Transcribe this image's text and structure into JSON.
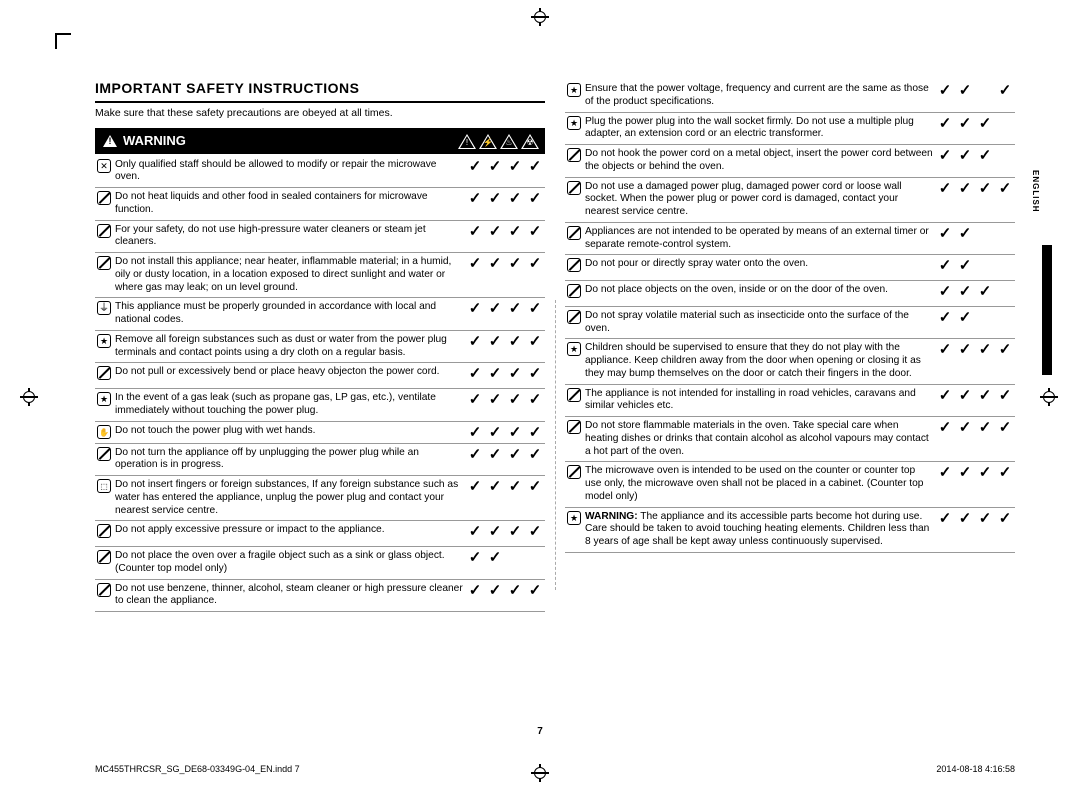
{
  "heading": "Important safety instructions",
  "subhead": "Make sure that these safety precautions are obeyed at all times.",
  "warning_label": "WARNING",
  "language_tab": "ENGLISH",
  "page_number": "7",
  "footer_left": "MC455THRCSR_SG_DE68-03349G-04_EN.indd   7",
  "footer_right": "2014-08-18    4:16:58",
  "checkmark": "✓",
  "left_rows": [
    {
      "icon": "disassembly",
      "text": "Only qualified staff should be allowed to modify or repair the microwave oven.",
      "checks": [
        true,
        true,
        true,
        true
      ]
    },
    {
      "icon": "prohibit",
      "text": "Do not heat liquids and other food in sealed containers for microwave function.",
      "checks": [
        true,
        true,
        true,
        true
      ]
    },
    {
      "icon": "prohibit",
      "text": "For your safety, do not use high-pressure water cleaners or steam jet cleaners.",
      "checks": [
        true,
        true,
        true,
        true
      ]
    },
    {
      "icon": "prohibit",
      "text": "Do not install this appliance; near heater, inflammable material; in a humid, oily or dusty location, in a location exposed to direct sunlight and water or where gas may leak; on un level ground.",
      "checks": [
        true,
        true,
        true,
        true
      ]
    },
    {
      "icon": "ground",
      "text": "This appliance must be properly grounded in accordance with local and national codes.",
      "checks": [
        true,
        true,
        true,
        true
      ]
    },
    {
      "icon": "star",
      "text": "Remove all foreign substances such as dust or water from the power plug terminals and contact points using a dry cloth on a regular basis.",
      "checks": [
        true,
        true,
        true,
        true
      ]
    },
    {
      "icon": "prohibit",
      "text": "Do not pull or excessively bend or place heavy objecton the power cord.",
      "checks": [
        true,
        true,
        true,
        true
      ]
    },
    {
      "icon": "star",
      "text": "In the event of a gas leak (such as propane gas, LP gas, etc.), ventilate immediately without touching the power plug.",
      "checks": [
        true,
        true,
        true,
        true
      ]
    },
    {
      "icon": "hand",
      "text": "Do not touch the power plug with wet hands.",
      "checks": [
        true,
        true,
        true,
        true
      ]
    },
    {
      "icon": "prohibit",
      "text": "Do not turn the appliance off by unplugging the power plug while an operation is in progress.",
      "checks": [
        true,
        true,
        true,
        true
      ]
    },
    {
      "icon": "plug",
      "text": "Do not insert fingers or foreign substances, If any foreign substance such as water has entered the appliance, unplug the power plug and contact your nearest service centre.",
      "checks": [
        true,
        true,
        true,
        true
      ]
    },
    {
      "icon": "prohibit",
      "text": "Do not apply excessive pressure or impact to the appliance.",
      "checks": [
        true,
        true,
        true,
        true
      ]
    },
    {
      "icon": "prohibit",
      "text": "Do not place the oven over a fragile object such as a sink or glass object. (Counter top model only)",
      "checks": [
        true,
        true,
        false,
        false
      ]
    },
    {
      "icon": "prohibit",
      "text": "Do not use benzene, thinner, alcohol, steam cleaner or high pressure cleaner to clean the appliance.",
      "checks": [
        true,
        true,
        true,
        true
      ]
    }
  ],
  "right_rows": [
    {
      "icon": "star",
      "text": "Ensure that the power voltage, frequency and current are the same as those of the product specifications.",
      "checks": [
        true,
        true,
        false,
        true
      ]
    },
    {
      "icon": "star",
      "text": "Plug the power plug into the wall socket firmly. Do not use a multiple plug adapter, an extension cord or an electric transformer.",
      "checks": [
        true,
        true,
        true,
        false
      ]
    },
    {
      "icon": "prohibit",
      "text": "Do not hook the power cord on a metal object, insert the power cord between the objects or behind the oven.",
      "checks": [
        true,
        true,
        true,
        false
      ]
    },
    {
      "icon": "prohibit",
      "text": "Do not use a damaged power plug, damaged power cord or loose wall socket. When the power plug or power cord is damaged, contact your nearest service centre.",
      "checks": [
        true,
        true,
        true,
        true
      ]
    },
    {
      "icon": "prohibit",
      "text": "Appliances are not intended to be operated by means of an external timer or separate remote-control system.",
      "checks": [
        true,
        true,
        false,
        false
      ]
    },
    {
      "icon": "prohibit",
      "text": "Do not pour or directly spray water onto the oven.",
      "checks": [
        true,
        true,
        false,
        false
      ]
    },
    {
      "icon": "prohibit",
      "text": "Do not place objects on the oven, inside or on the door of the oven.",
      "checks": [
        true,
        true,
        true,
        false
      ]
    },
    {
      "icon": "prohibit",
      "text": "Do not spray volatile material such as insecticide onto the surface of the oven.",
      "checks": [
        true,
        true,
        false,
        false
      ]
    },
    {
      "icon": "star",
      "text": "Children should be supervised to ensure that they do not play with the appliance. Keep children away from the door when opening or closing it as they may bump themselves on the door or catch their fingers in the door.",
      "checks": [
        true,
        true,
        true,
        true
      ]
    },
    {
      "icon": "prohibit",
      "text": "The appliance is not intended for installing in road vehicles, caravans and similar vehicles etc.",
      "checks": [
        true,
        true,
        true,
        true
      ]
    },
    {
      "icon": "prohibit",
      "text": "Do not store flammable materials in the oven. Take special care when heating dishes or drinks that contain alcohol as alcohol vapours may contact a hot part of the oven.",
      "checks": [
        true,
        true,
        true,
        true
      ]
    },
    {
      "icon": "prohibit",
      "text": "The microwave oven is intended to be used on the counter or counter top use only, the microwave oven shall not be placed in a cabinet. (Counter top model only)",
      "checks": [
        true,
        true,
        true,
        true
      ]
    },
    {
      "icon": "star",
      "text": "<b>WARNING:</b> The appliance and its accessible parts become hot during use. Care should be taken to avoid touching heating elements. Children less than 8 years of age shall be kept away unless continuously supervised.",
      "checks": [
        true,
        true,
        true,
        true
      ]
    }
  ]
}
